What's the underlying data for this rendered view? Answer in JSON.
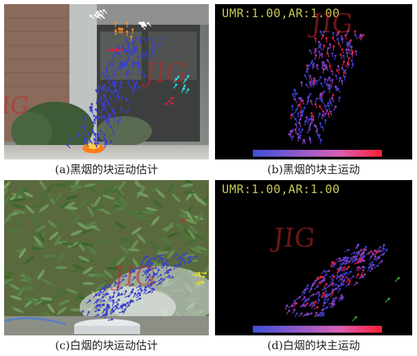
{
  "figure": {
    "panels": [
      {
        "id": "a",
        "caption": "(a)黑烟的块运动估计",
        "watermark": "JIG"
      },
      {
        "id": "b",
        "caption": "(b)黑烟的块主运动",
        "overlay": "UMR:1.00,AR:1.00",
        "watermark": "JIG"
      },
      {
        "id": "c",
        "caption": "(c)白烟的块运动估计",
        "watermark": "JIG"
      },
      {
        "id": "d",
        "caption": "(d)白烟的块主运动",
        "overlay": "UMR:1.00,AR:1.00",
        "watermark": "JIG"
      }
    ],
    "colors": {
      "arrow_blue": "#3a3fd0",
      "arrow_purple": "#8a40c8",
      "arrow_red": "#e02040",
      "arrow_orange": "#ff8c2a",
      "arrow_white": "#ffffff",
      "arrow_cyan": "#30e0e0",
      "arrow_yellow": "#e8e020",
      "arrow_green": "#30c040",
      "colorbar_start": "#3f4fd8",
      "colorbar_mid": "#c860c0",
      "colorbar_end": "#ff2030"
    }
  }
}
